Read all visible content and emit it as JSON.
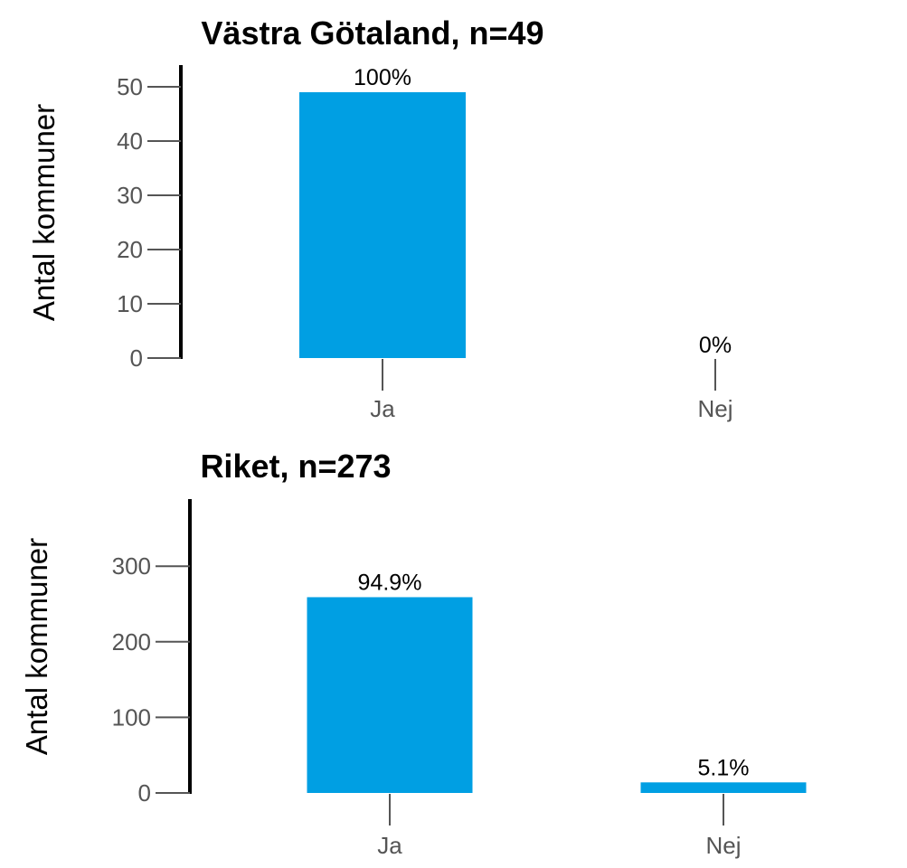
{
  "chart_data": [
    {
      "type": "bar",
      "title": "Västra Götaland, n=49",
      "ylabel": "Antal kommuner",
      "xlabel": "",
      "categories": [
        "Ja",
        "Nej"
      ],
      "values": [
        49,
        0
      ],
      "data_labels": [
        "100%",
        "0%"
      ],
      "yticks": [
        0,
        10,
        20,
        30,
        40,
        50
      ],
      "ylim": [
        0,
        53
      ],
      "grid": false,
      "bar_color": "#009FE3"
    },
    {
      "type": "bar",
      "title": "Riket, n=273",
      "ylabel": "Antal kommuner",
      "xlabel": "",
      "categories": [
        "Ja",
        "Nej"
      ],
      "values": [
        259,
        14
      ],
      "data_labels": [
        "94.9%",
        "5.1%"
      ],
      "yticks": [
        0,
        100,
        200,
        300
      ],
      "ylim": [
        0,
        390
      ],
      "grid": false,
      "bar_color": "#009FE3"
    }
  ]
}
